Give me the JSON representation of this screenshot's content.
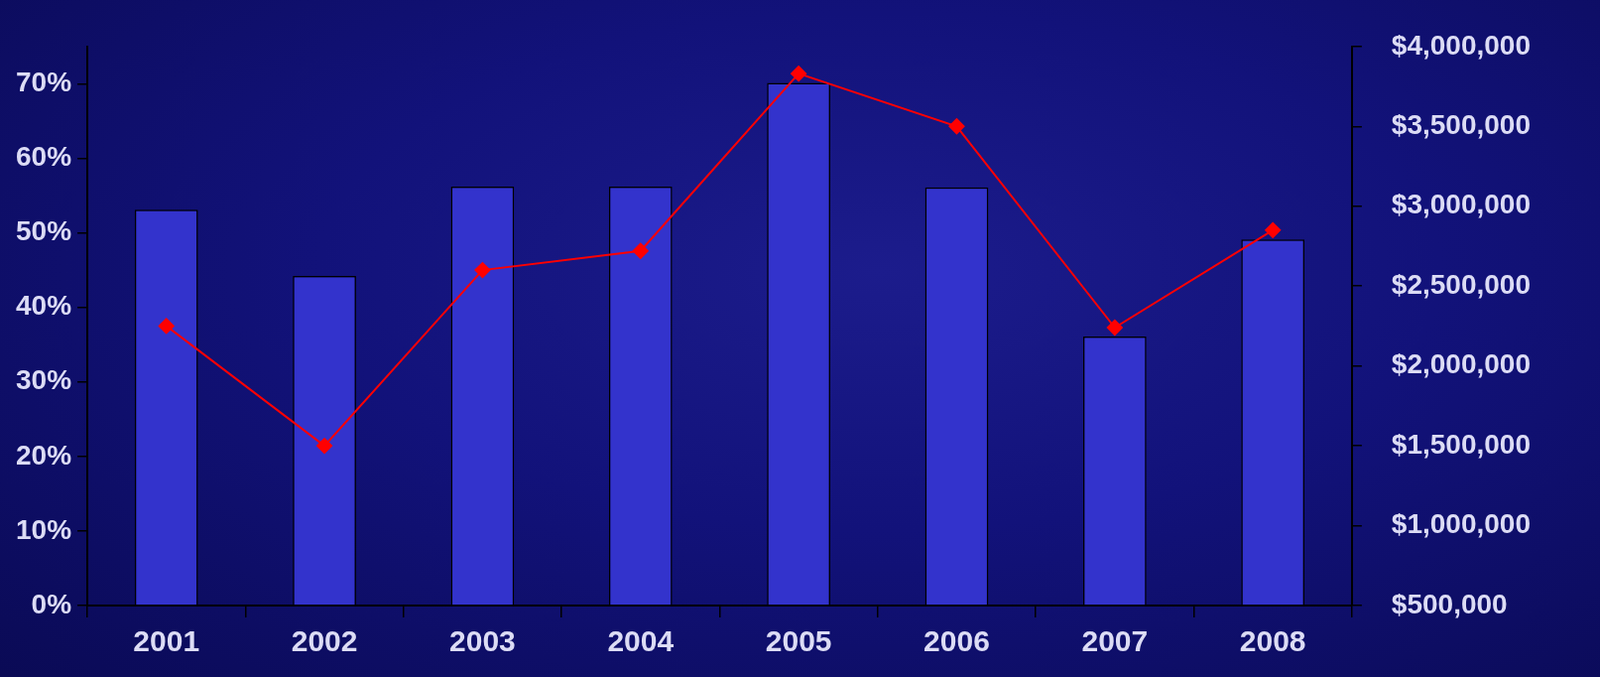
{
  "chart_data": {
    "type": "bar",
    "categories": [
      "2001",
      "2002",
      "2003",
      "2004",
      "2005",
      "2006",
      "2007",
      "2008"
    ],
    "series": [
      {
        "type": "bar",
        "color": "#3333cc",
        "values": [
          53.1,
          44.2,
          56.2,
          56.2,
          70.1,
          56.1,
          36.1,
          49.1
        ]
      },
      {
        "type": "line",
        "color": "#ff0000",
        "marker": "diamond",
        "line_style": "solid",
        "axis": "y2",
        "values": [
          2250000,
          1500000,
          2600000,
          2720000,
          3830000,
          3500000,
          2240000,
          2850000
        ]
      }
    ],
    "ylim": [
      0,
      75
    ],
    "yticks": [
      {
        "value": 0,
        "label": "0%"
      },
      {
        "value": 10,
        "label": "10%"
      },
      {
        "value": 20,
        "label": "20%"
      },
      {
        "value": 30,
        "label": "30%"
      },
      {
        "value": 40,
        "label": "40%"
      },
      {
        "value": 50,
        "label": "50%"
      },
      {
        "value": 60,
        "label": "60%"
      },
      {
        "value": 70,
        "label": "70%"
      }
    ],
    "y2lim": [
      500000,
      4000000
    ],
    "y2ticks": [
      {
        "value": 500000,
        "label": "$500,000"
      },
      {
        "value": 1000000,
        "label": "$1,000,000"
      },
      {
        "value": 1500000,
        "label": "$1,500,000"
      },
      {
        "value": 2000000,
        "label": "$2,000,000"
      },
      {
        "value": 2500000,
        "label": "$2,500,000"
      },
      {
        "value": 3000000,
        "label": "$3,000,000"
      },
      {
        "value": 3500000,
        "label": "$3,500,000"
      },
      {
        "value": 4000000,
        "label": "$4,000,000"
      }
    ],
    "grid": false
  }
}
